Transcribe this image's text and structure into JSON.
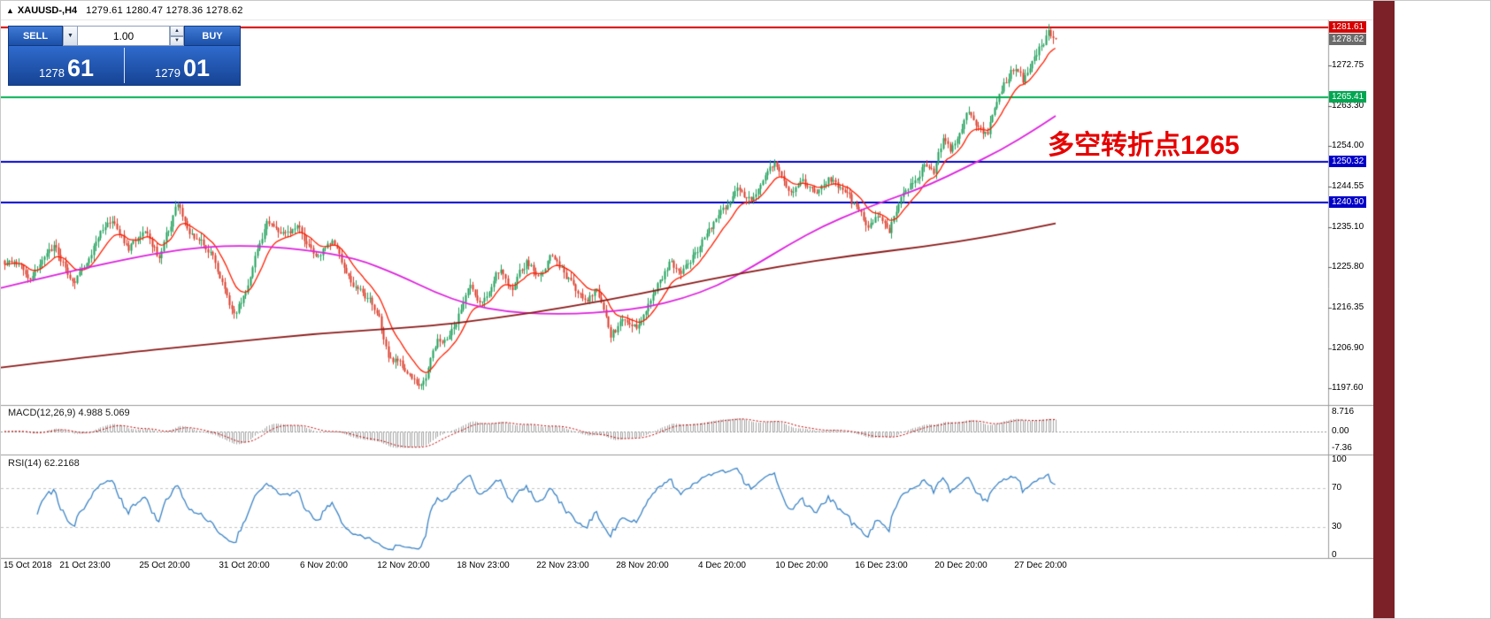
{
  "window": {
    "right_strip_color": "#7c2127"
  },
  "title": {
    "marker": "▲",
    "symbol": "XAUUSD-,H4",
    "ohlc_text": "1279.61 1280.47 1278.36 1278.62"
  },
  "icons": {
    "dropdown": "▼",
    "spinner_up": "▲",
    "spinner_down": "▼"
  },
  "trade": {
    "sell_label": "SELL",
    "buy_label": "BUY",
    "volume": "1.00",
    "bid_main": "1278",
    "bid_pips": "61",
    "ask_main": "1279",
    "ask_pips": "01"
  },
  "annotation": {
    "text": "多空转折点1265",
    "color": "#e60000"
  },
  "indicators": {
    "macd_label": "MACD(12,26,9) 4.988 5.069",
    "rsi_label": "RSI(14) 62.2168"
  },
  "chart_data": {
    "type": "candlestick",
    "symbol": "XAUUSD",
    "timeframe": "H4",
    "ohlc": {
      "open": 1279.61,
      "high": 1280.47,
      "low": 1278.36,
      "close": 1278.62
    },
    "price_axis": {
      "ylim": [
        1194.2,
        1283.2
      ],
      "ticks": [
        "1272.75",
        "1263.30",
        "1254.00",
        "1244.55",
        "1235.10",
        "1225.80",
        "1216.35",
        "1206.90",
        "1197.60"
      ],
      "tagged_labels": [
        {
          "value": 1281.61,
          "text": "1281.61",
          "bg": "#d60000"
        },
        {
          "value": 1278.62,
          "text": "1278.62",
          "bg": "#6b6b6b"
        },
        {
          "value": 1265.41,
          "text": "1265.41",
          "bg": "#00a651"
        },
        {
          "value": 1250.32,
          "text": "1250.32",
          "bg": "#0000c8"
        },
        {
          "value": 1240.9,
          "text": "1240.90",
          "bg": "#0000c8"
        }
      ]
    },
    "hlines": [
      {
        "value": 1281.61,
        "color": "#d60000",
        "width": 2
      },
      {
        "value": 1265.41,
        "color": "#00b050",
        "width": 2
      },
      {
        "value": 1250.32,
        "color": "#0000c8",
        "width": 2
      },
      {
        "value": 1240.9,
        "color": "#0000c8",
        "width": 2
      }
    ],
    "x_ticks": [
      "15 Oct 2018",
      "21 Oct 23:00",
      "25 Oct 20:00",
      "31 Oct 20:00",
      "6 Nov 20:00",
      "12 Nov 20:00",
      "18 Nov 23:00",
      "22 Nov 23:00",
      "28 Nov 20:00",
      "4 Dec 20:00",
      "10 Dec 20:00",
      "16 Dec 23:00",
      "20 Dec 20:00",
      "27 Dec 20:00"
    ],
    "candles": {
      "count": 450,
      "seed": 9,
      "up_color": "#1fa05a",
      "down_color": "#dc3c2a",
      "close_waypoints": [
        [
          0,
          1227
        ],
        [
          11,
          1224
        ],
        [
          21,
          1231
        ],
        [
          30,
          1222
        ],
        [
          36,
          1229
        ],
        [
          45,
          1237
        ],
        [
          53,
          1230
        ],
        [
          60,
          1235
        ],
        [
          66,
          1228
        ],
        [
          74,
          1241
        ],
        [
          79,
          1233
        ],
        [
          89,
          1229
        ],
        [
          98,
          1214
        ],
        [
          104,
          1222
        ],
        [
          112,
          1237
        ],
        [
          119,
          1233
        ],
        [
          125,
          1236
        ],
        [
          132,
          1228
        ],
        [
          140,
          1231
        ],
        [
          149,
          1222
        ],
        [
          159,
          1216
        ],
        [
          164,
          1206
        ],
        [
          172,
          1201
        ],
        [
          178,
          1198
        ],
        [
          185,
          1208
        ],
        [
          193,
          1212
        ],
        [
          198,
          1222
        ],
        [
          204,
          1218
        ],
        [
          212,
          1226
        ],
        [
          217,
          1221
        ],
        [
          223,
          1227
        ],
        [
          229,
          1224
        ],
        [
          234,
          1229
        ],
        [
          242,
          1222
        ],
        [
          248,
          1218
        ],
        [
          253,
          1221
        ],
        [
          259,
          1210
        ],
        [
          265,
          1214
        ],
        [
          270,
          1212
        ],
        [
          276,
          1219
        ],
        [
          284,
          1227
        ],
        [
          289,
          1224
        ],
        [
          297,
          1231
        ],
        [
          302,
          1235
        ],
        [
          308,
          1240
        ],
        [
          314,
          1244
        ],
        [
          319,
          1241
        ],
        [
          325,
          1248
        ],
        [
          329,
          1250
        ],
        [
          335,
          1244
        ],
        [
          340,
          1246
        ],
        [
          346,
          1243
        ],
        [
          352,
          1246
        ],
        [
          357,
          1244
        ],
        [
          363,
          1240
        ],
        [
          369,
          1236
        ],
        [
          374,
          1238
        ],
        [
          378,
          1235
        ],
        [
          384,
          1243
        ],
        [
          389,
          1246
        ],
        [
          393,
          1250
        ],
        [
          397,
          1248
        ],
        [
          401,
          1255
        ],
        [
          404,
          1252
        ],
        [
          408,
          1258
        ],
        [
          412,
          1262
        ],
        [
          416,
          1259
        ],
        [
          420,
          1256
        ],
        [
          423,
          1263
        ],
        [
          427,
          1268
        ],
        [
          431,
          1272
        ],
        [
          435,
          1269
        ],
        [
          438,
          1273
        ],
        [
          442,
          1277
        ],
        [
          446,
          1280
        ],
        [
          449,
          1278.6
        ]
      ]
    },
    "moving_averages": [
      {
        "name": "ma-fast",
        "color": "#ff1e00",
        "type": "ema_from_closes",
        "period": 13
      },
      {
        "name": "ma-medium",
        "color": "#dd22dd",
        "type": "waypoints",
        "points": [
          [
            0,
            1221
          ],
          [
            100,
            1226
          ],
          [
            200,
            1230
          ],
          [
            270,
            1231
          ],
          [
            340,
            1230
          ],
          [
            400,
            1228
          ],
          [
            450,
            1224
          ],
          [
            490,
            1220
          ],
          [
            530,
            1217
          ],
          [
            570,
            1215.5
          ],
          [
            610,
            1215
          ],
          [
            650,
            1215
          ],
          [
            690,
            1215.5
          ],
          [
            730,
            1216.5
          ],
          [
            770,
            1218.5
          ],
          [
            810,
            1221.5
          ],
          [
            850,
            1226
          ],
          [
            890,
            1231
          ],
          [
            930,
            1235.5
          ],
          [
            970,
            1239
          ],
          [
            1010,
            1242
          ],
          [
            1050,
            1245
          ],
          [
            1090,
            1249
          ],
          [
            1130,
            1253
          ],
          [
            1170,
            1258
          ],
          [
            1192,
            1261
          ]
        ]
      },
      {
        "name": "ma-slow",
        "color": "#8b1a1a",
        "type": "waypoints",
        "points": [
          [
            0,
            1202.5
          ],
          [
            120,
            1205.5
          ],
          [
            240,
            1208
          ],
          [
            360,
            1210.5
          ],
          [
            480,
            1212
          ],
          [
            560,
            1214
          ],
          [
            640,
            1216.5
          ],
          [
            720,
            1219.5
          ],
          [
            800,
            1223
          ],
          [
            880,
            1226
          ],
          [
            960,
            1228.5
          ],
          [
            1040,
            1230.5
          ],
          [
            1120,
            1233
          ],
          [
            1192,
            1236
          ]
        ]
      }
    ],
    "macd": {
      "params": [
        12,
        26,
        9
      ],
      "values_text": "4.988 5.069",
      "axis_ticks": [
        "8.716",
        "0.00",
        "-7.36"
      ],
      "hist_color": "#a6a6a6",
      "signal_color": "#c00000"
    },
    "rsi": {
      "period": 14,
      "value": 62.2168,
      "axis_ticks": [
        "100",
        "70",
        "30",
        "0"
      ],
      "levels": [
        70,
        30
      ],
      "color": "#3d85c6"
    }
  }
}
